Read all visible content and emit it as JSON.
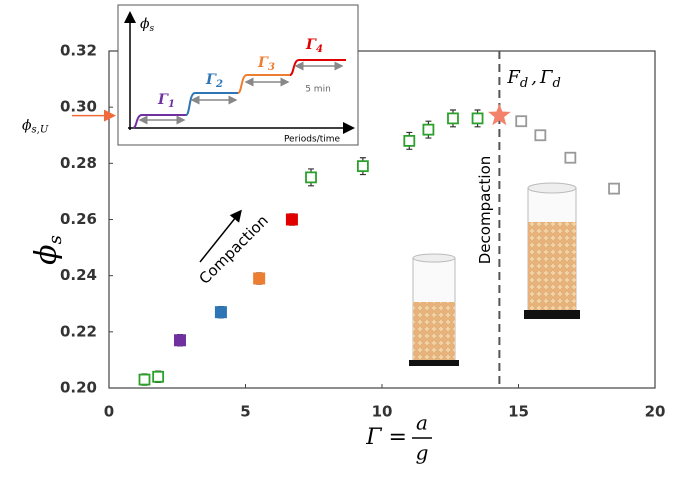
{
  "chart_data": {
    "type": "scatter",
    "y_label": {
      "symbol": "ϕ",
      "subscript": "s"
    },
    "x_label": {
      "lhs": "Γ =",
      "numerator": "a",
      "denominator": "g"
    },
    "xlim": [
      0,
      20
    ],
    "xticks": [
      0,
      5,
      10,
      15,
      20
    ],
    "ylim": [
      0.2,
      0.32
    ],
    "yticks": [
      {
        "value": 0.2,
        "label": "0.20"
      },
      {
        "value": 0.22,
        "label": "0.22"
      },
      {
        "value": 0.24,
        "label": "0.24"
      },
      {
        "value": 0.26,
        "label": "0.26"
      },
      {
        "value": 0.28,
        "label": "0.28"
      },
      {
        "value": 0.3,
        "label": "0.30"
      },
      {
        "value": 0.32,
        "label": "0.32"
      }
    ],
    "series": [
      {
        "color": "#2ca02c",
        "marker": "open-square",
        "x": [
          1.3,
          1.8,
          7.4,
          9.3,
          11.0,
          11.7,
          12.6,
          13.5
        ],
        "values": [
          0.203,
          0.204,
          0.275,
          0.279,
          0.288,
          0.292,
          0.296,
          0.296
        ],
        "errors": [
          0.002,
          0.002,
          0.003,
          0.003,
          0.003,
          0.003,
          0.003,
          0.003
        ]
      },
      {
        "colors": [
          "#7030a0",
          "#2e75b6",
          "#ed7d31",
          "#e00000"
        ],
        "marker": "filled-square",
        "x": [
          2.6,
          4.1,
          5.5,
          6.7
        ],
        "values": [
          0.217,
          0.227,
          0.239,
          0.26
        ],
        "errors": [
          0.002,
          0.002,
          0.002,
          0.002
        ]
      },
      {
        "color": "#f4826a",
        "marker": "star",
        "x": [
          14.3
        ],
        "values": [
          0.297
        ]
      },
      {
        "color": "#999999",
        "marker": "open-square",
        "x": [
          15.1,
          15.8,
          16.9,
          18.5
        ],
        "values": [
          0.295,
          0.29,
          0.282,
          0.271
        ]
      }
    ],
    "decompaction_x": 14.3,
    "decompaction_text": "Decompaction",
    "compaction_text": "Compaction",
    "threshold_label": {
      "f": "F",
      "f_sub": "d",
      "sep": ",",
      "g": "Γ",
      "g_sub": "d"
    },
    "phi_su": {
      "symbol": "ϕ",
      "subscript": "s,U",
      "value": 0.297,
      "color": "#f06a3a"
    },
    "inset": {
      "y_label": {
        "symbol": "ϕ",
        "subscript": "s"
      },
      "x_label": "Periods/time",
      "duration": "5 min",
      "steps": [
        {
          "symbol": "Γ",
          "subscript": "1",
          "color": "#7030a0"
        },
        {
          "symbol": "Γ",
          "subscript": "2",
          "color": "#2e75b6"
        },
        {
          "symbol": "Γ",
          "subscript": "3",
          "color": "#ed7d31"
        },
        {
          "symbol": "Γ",
          "subscript": "4",
          "color": "#e00000"
        }
      ]
    }
  }
}
